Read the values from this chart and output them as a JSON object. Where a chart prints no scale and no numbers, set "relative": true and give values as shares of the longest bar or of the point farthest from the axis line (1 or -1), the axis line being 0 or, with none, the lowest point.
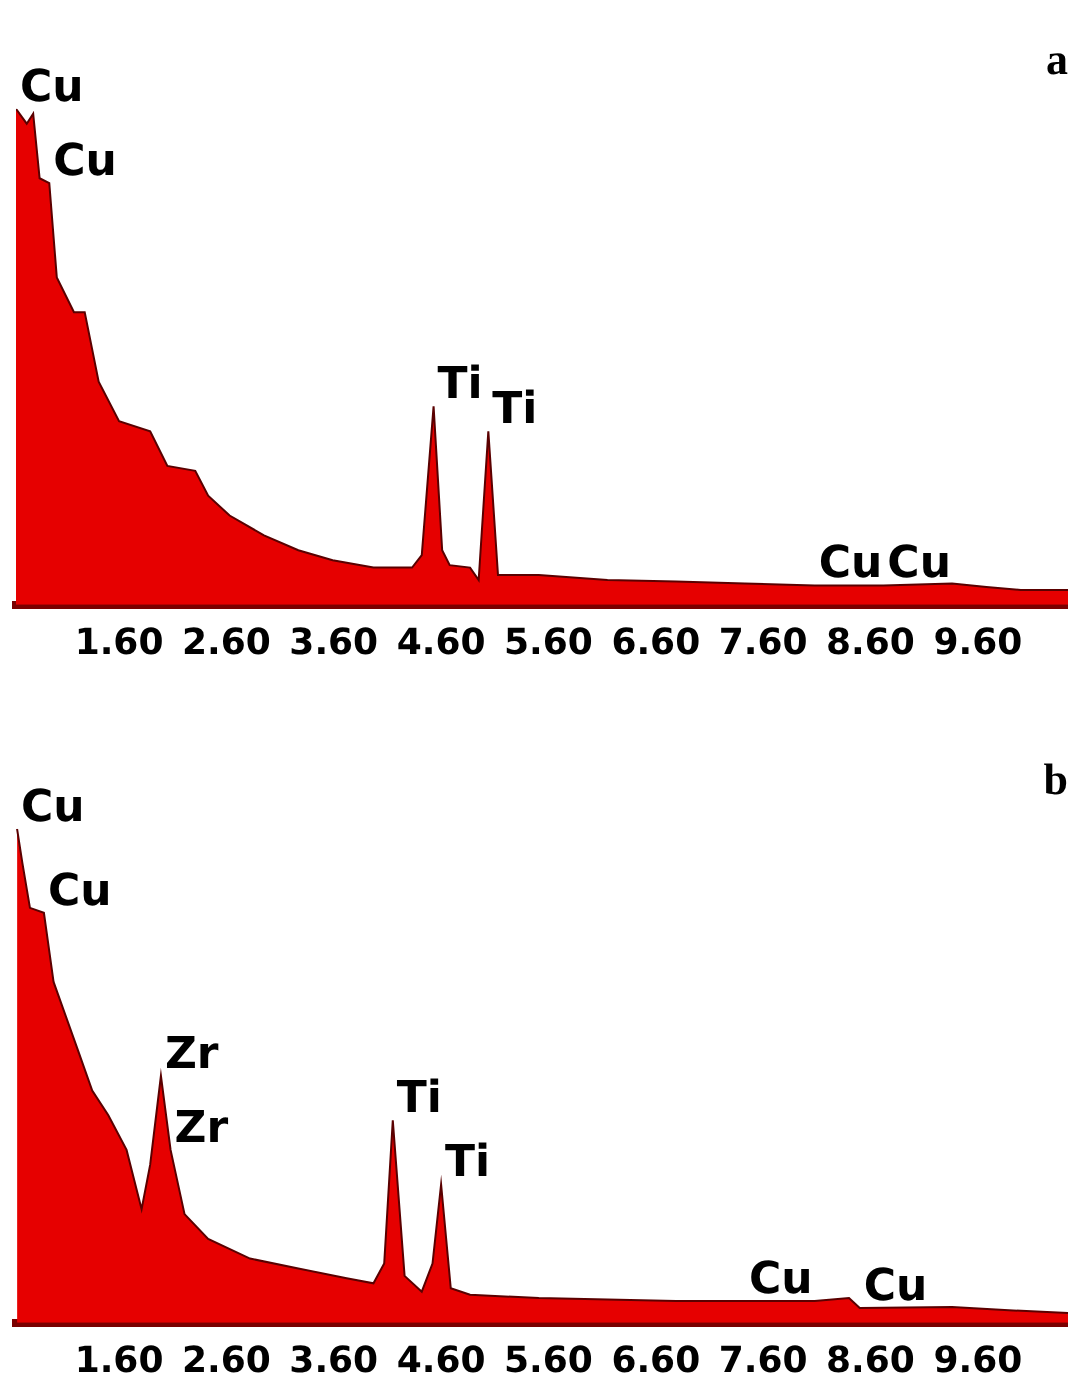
{
  "chart_data": [
    {
      "type": "area",
      "title": "a",
      "relative": true,
      "color": "#e60000",
      "legend": false,
      "grid": false,
      "tick_labels": "x",
      "xlim": [
        0.64,
        10.44
      ],
      "xticks": [
        {
          "value": 1.6,
          "label": "1.60"
        },
        {
          "value": 2.6,
          "label": "2.60"
        },
        {
          "value": 3.6,
          "label": "3.60"
        },
        {
          "value": 4.6,
          "label": "4.60"
        },
        {
          "value": 5.6,
          "label": "5.60"
        },
        {
          "value": 6.6,
          "label": "6.60"
        },
        {
          "value": 7.6,
          "label": "7.60"
        },
        {
          "value": 8.6,
          "label": "8.60"
        },
        {
          "value": 9.6,
          "label": "9.60"
        }
      ],
      "x": [
        0.64,
        0.74,
        0.8,
        0.86,
        0.95,
        1.02,
        1.18,
        1.28,
        1.41,
        1.6,
        1.89,
        2.05,
        2.31,
        2.43,
        2.63,
        2.95,
        3.27,
        3.59,
        3.97,
        4.33,
        4.42,
        4.53,
        4.61,
        4.68,
        4.87,
        4.95,
        5.04,
        5.13,
        5.51,
        6.15,
        6.79,
        7.43,
        8.08,
        8.72,
        9.36,
        9.68,
        10.0,
        10.44
      ],
      "values": [
        1.0,
        0.97,
        0.99,
        0.86,
        0.85,
        0.66,
        0.59,
        0.59,
        0.45,
        0.37,
        0.35,
        0.28,
        0.27,
        0.22,
        0.18,
        0.14,
        0.11,
        0.09,
        0.075,
        0.075,
        0.1,
        0.4,
        0.11,
        0.08,
        0.075,
        0.05,
        0.35,
        0.06,
        0.06,
        0.05,
        0.047,
        0.043,
        0.039,
        0.039,
        0.043,
        0.036,
        0.03,
        0.03
      ],
      "annotations": [
        {
          "text": "Cu",
          "x": 0.64,
          "y": 1.0
        },
        {
          "text": "Cu",
          "x": 0.95,
          "y": 0.85
        },
        {
          "text": "Ti",
          "x": 4.53,
          "y": 0.4
        },
        {
          "text": "Ti",
          "x": 5.04,
          "y": 0.35
        },
        {
          "text": "Cu",
          "x": 8.08,
          "y": 0.039
        },
        {
          "text": "Cu",
          "x": 8.72,
          "y": 0.039
        }
      ]
    },
    {
      "type": "area",
      "title": "b",
      "relative": true,
      "color": "#e60000",
      "legend": false,
      "grid": false,
      "tick_labels": "x",
      "xlim": [
        0.64,
        10.44
      ],
      "xticks": [
        {
          "value": 1.6,
          "label": "1.60"
        },
        {
          "value": 2.6,
          "label": "2.60"
        },
        {
          "value": 3.6,
          "label": "3.60"
        },
        {
          "value": 4.6,
          "label": "4.60"
        },
        {
          "value": 5.6,
          "label": "5.60"
        },
        {
          "value": 6.6,
          "label": "6.60"
        },
        {
          "value": 7.6,
          "label": "7.60"
        },
        {
          "value": 8.6,
          "label": "8.60"
        },
        {
          "value": 9.6,
          "label": "9.60"
        }
      ],
      "x": [
        0.65,
        0.7,
        0.77,
        0.9,
        0.99,
        1.22,
        1.35,
        1.5,
        1.67,
        1.81,
        1.89,
        1.99,
        2.08,
        2.21,
        2.43,
        2.82,
        3.27,
        3.72,
        3.97,
        4.07,
        4.15,
        4.26,
        4.42,
        4.52,
        4.6,
        4.69,
        4.87,
        5.51,
        6.15,
        6.79,
        7.43,
        8.08,
        8.4,
        8.5,
        9.36,
        9.93,
        10.44
      ],
      "values": [
        1.0,
        0.93,
        0.84,
        0.83,
        0.69,
        0.55,
        0.47,
        0.42,
        0.35,
        0.23,
        0.32,
        0.5,
        0.35,
        0.22,
        0.17,
        0.13,
        0.11,
        0.09,
        0.08,
        0.12,
        0.41,
        0.095,
        0.063,
        0.12,
        0.28,
        0.07,
        0.057,
        0.05,
        0.047,
        0.044,
        0.044,
        0.044,
        0.05,
        0.03,
        0.032,
        0.025,
        0.02
      ],
      "annotations": [
        {
          "text": "Cu",
          "x": 0.65,
          "y": 1.0
        },
        {
          "text": "Cu",
          "x": 0.9,
          "y": 0.83
        },
        {
          "text": "Zr",
          "x": 1.99,
          "y": 0.5
        },
        {
          "text": "Zr",
          "x": 2.08,
          "y": 0.35
        },
        {
          "text": "Ti",
          "x": 4.15,
          "y": 0.41
        },
        {
          "text": "Ti",
          "x": 4.6,
          "y": 0.28
        },
        {
          "text": "Cu",
          "x": 7.43,
          "y": 0.044
        },
        {
          "text": "Cu",
          "x": 8.5,
          "y": 0.03
        }
      ]
    }
  ]
}
